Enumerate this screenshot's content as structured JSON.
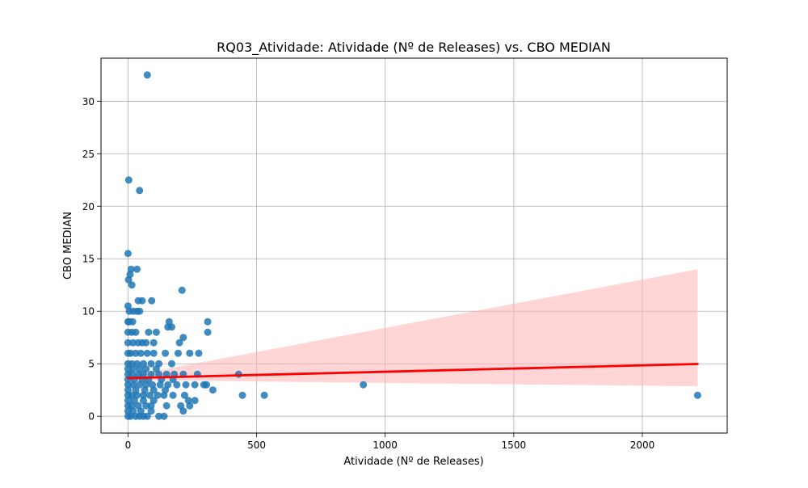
{
  "chart_data": {
    "type": "scatter",
    "title": "RQ03_Atividade: Atividade (Nº de Releases) vs. CBO MEDIAN",
    "xlabel": "Atividade (Nº de Releases)",
    "ylabel": "CBO MEDIAN",
    "xlim": [
      -105,
      2330
    ],
    "ylim": [
      -1.6,
      34.1
    ],
    "xticks": [
      0,
      500,
      1000,
      1500,
      2000
    ],
    "yticks": [
      0,
      5,
      10,
      15,
      20,
      25,
      30
    ],
    "grid": true,
    "point_color": "#1f77b4",
    "regression": {
      "color": "#ff0000",
      "band_color": "#ffb3b3",
      "x": [
        0,
        2215
      ],
      "y": [
        3.63,
        4.98
      ],
      "ci_lower": [
        3.45,
        2.85
      ],
      "ci_upper": [
        3.82,
        14.0
      ]
    },
    "points": [
      [
        75,
        32.5
      ],
      [
        3,
        22.5
      ],
      [
        45,
        21.5
      ],
      [
        0,
        15.5
      ],
      [
        12,
        14.0
      ],
      [
        35,
        14.0
      ],
      [
        8,
        13.5
      ],
      [
        2,
        13.0
      ],
      [
        15,
        12.5
      ],
      [
        210,
        12.0
      ],
      [
        40,
        11.0
      ],
      [
        55,
        11.0
      ],
      [
        92,
        11.0
      ],
      [
        0,
        10.5
      ],
      [
        5,
        10.0
      ],
      [
        20,
        10.0
      ],
      [
        45,
        10.0
      ],
      [
        35,
        10.0
      ],
      [
        160,
        9.0
      ],
      [
        310,
        9.0
      ],
      [
        0,
        9.0
      ],
      [
        5,
        9.0
      ],
      [
        18,
        9.0
      ],
      [
        155,
        8.5
      ],
      [
        170,
        8.5
      ],
      [
        0,
        8.0
      ],
      [
        15,
        8.0
      ],
      [
        30,
        8.0
      ],
      [
        80,
        8.0
      ],
      [
        110,
        8.0
      ],
      [
        310,
        8.0
      ],
      [
        215,
        7.5
      ],
      [
        0,
        7.0
      ],
      [
        20,
        7.0
      ],
      [
        40,
        7.0
      ],
      [
        55,
        7.0
      ],
      [
        70,
        7.0
      ],
      [
        100,
        7.0
      ],
      [
        200,
        7.0
      ],
      [
        0,
        6.0
      ],
      [
        10,
        6.0
      ],
      [
        30,
        6.0
      ],
      [
        50,
        6.0
      ],
      [
        75,
        6.0
      ],
      [
        100,
        6.0
      ],
      [
        145,
        6.0
      ],
      [
        195,
        6.0
      ],
      [
        240,
        6.0
      ],
      [
        275,
        6.0
      ],
      [
        0,
        5.0
      ],
      [
        15,
        5.0
      ],
      [
        35,
        5.0
      ],
      [
        60,
        5.0
      ],
      [
        90,
        5.0
      ],
      [
        120,
        5.0
      ],
      [
        170,
        5.0
      ],
      [
        0,
        4.5
      ],
      [
        20,
        4.5
      ],
      [
        45,
        4.5
      ],
      [
        70,
        4.5
      ],
      [
        110,
        4.5
      ],
      [
        0,
        4.0
      ],
      [
        15,
        4.0
      ],
      [
        40,
        4.0
      ],
      [
        60,
        4.0
      ],
      [
        90,
        4.0
      ],
      [
        120,
        4.0
      ],
      [
        150,
        4.0
      ],
      [
        180,
        4.0
      ],
      [
        215,
        4.0
      ],
      [
        270,
        4.0
      ],
      [
        430,
        4.0
      ],
      [
        0,
        3.5
      ],
      [
        25,
        3.5
      ],
      [
        55,
        3.5
      ],
      [
        80,
        3.5
      ],
      [
        130,
        3.5
      ],
      [
        175,
        3.5
      ],
      [
        0,
        3.0
      ],
      [
        20,
        3.0
      ],
      [
        45,
        3.0
      ],
      [
        70,
        3.0
      ],
      [
        95,
        3.0
      ],
      [
        125,
        3.0
      ],
      [
        155,
        3.0
      ],
      [
        190,
        3.0
      ],
      [
        225,
        3.0
      ],
      [
        260,
        3.0
      ],
      [
        295,
        3.0
      ],
      [
        305,
        3.0
      ],
      [
        915,
        3.0
      ],
      [
        0,
        2.5
      ],
      [
        30,
        2.5
      ],
      [
        65,
        2.5
      ],
      [
        100,
        2.5
      ],
      [
        145,
        2.5
      ],
      [
        330,
        2.5
      ],
      [
        0,
        2.0
      ],
      [
        15,
        2.0
      ],
      [
        35,
        2.0
      ],
      [
        60,
        2.0
      ],
      [
        85,
        2.0
      ],
      [
        115,
        2.0
      ],
      [
        140,
        2.0
      ],
      [
        175,
        2.0
      ],
      [
        220,
        2.0
      ],
      [
        445,
        2.0
      ],
      [
        530,
        2.0
      ],
      [
        2215,
        2.0
      ],
      [
        0,
        1.5
      ],
      [
        25,
        1.5
      ],
      [
        60,
        1.5
      ],
      [
        100,
        1.5
      ],
      [
        235,
        1.5
      ],
      [
        260,
        1.5
      ],
      [
        0,
        1.0
      ],
      [
        15,
        1.0
      ],
      [
        40,
        1.0
      ],
      [
        70,
        1.0
      ],
      [
        90,
        1.0
      ],
      [
        150,
        1.0
      ],
      [
        205,
        1.0
      ],
      [
        240,
        1.0
      ],
      [
        0,
        0.5
      ],
      [
        20,
        0.5
      ],
      [
        50,
        0.5
      ],
      [
        90,
        0.5
      ],
      [
        215,
        0.5
      ],
      [
        0,
        0.0
      ],
      [
        10,
        0.0
      ],
      [
        30,
        0.0
      ],
      [
        45,
        0.0
      ],
      [
        60,
        0.0
      ],
      [
        75,
        0.0
      ],
      [
        120,
        0.0
      ],
      [
        140,
        0.0
      ]
    ]
  }
}
